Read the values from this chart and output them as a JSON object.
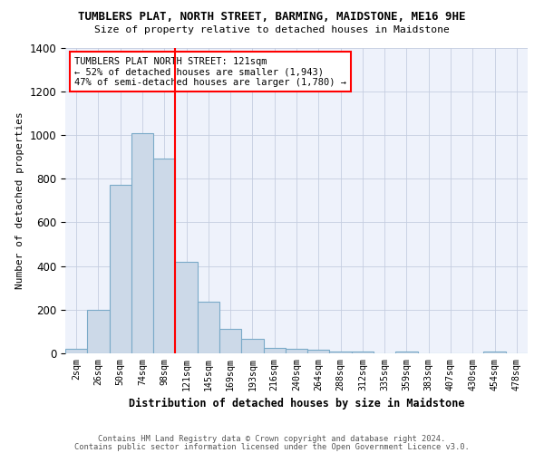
{
  "title": "TUMBLERS PLAT, NORTH STREET, BARMING, MAIDSTONE, ME16 9HE",
  "subtitle": "Size of property relative to detached houses in Maidstone",
  "xlabel": "Distribution of detached houses by size in Maidstone",
  "ylabel": "Number of detached properties",
  "bar_color": "#ccd9e8",
  "bar_edge_color": "#7aaac8",
  "background_color": "#eef2fb",
  "grid_color": "#c5cde0",
  "categories": [
    "2sqm",
    "26sqm",
    "50sqm",
    "74sqm",
    "98sqm",
    "121sqm",
    "145sqm",
    "169sqm",
    "193sqm",
    "216sqm",
    "240sqm",
    "264sqm",
    "288sqm",
    "312sqm",
    "335sqm",
    "359sqm",
    "383sqm",
    "407sqm",
    "430sqm",
    "454sqm",
    "478sqm"
  ],
  "values": [
    20,
    200,
    770,
    1010,
    890,
    420,
    235,
    110,
    65,
    25,
    20,
    15,
    10,
    10,
    0,
    10,
    0,
    0,
    0,
    10,
    0
  ],
  "ylim": [
    0,
    1400
  ],
  "red_line_index": 5,
  "annotation_lines": [
    "TUMBLERS PLAT NORTH STREET: 121sqm",
    "← 52% of detached houses are smaller (1,943)",
    "47% of semi-detached houses are larger (1,780) →"
  ],
  "footnote1": "Contains HM Land Registry data © Crown copyright and database right 2024.",
  "footnote2": "Contains public sector information licensed under the Open Government Licence v3.0."
}
